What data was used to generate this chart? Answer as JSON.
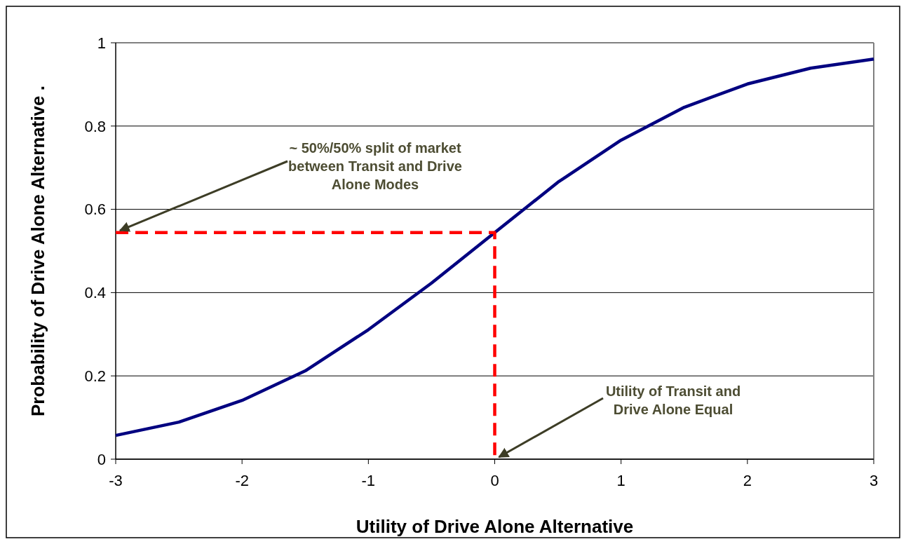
{
  "chart_data": {
    "type": "line",
    "xlabel": "Utility of Drive Alone Alternative",
    "ylabel": "Probability of Drive Alone Alternative  .",
    "xlim": [
      -3,
      3
    ],
    "xticks": [
      -3,
      -2,
      -1,
      0,
      1,
      2,
      3
    ],
    "ylim": [
      0,
      1
    ],
    "yticks": [
      0,
      0.2,
      0.4,
      0.6,
      0.8,
      1
    ],
    "grid": "y",
    "marker": "none",
    "series": [
      {
        "color": "#000080",
        "line_style": "solid",
        "x": [
          -3,
          -2.5,
          -2,
          -1.5,
          -1,
          -0.5,
          0,
          0.5,
          1,
          1.5,
          2,
          2.5,
          3
        ],
        "values": [
          0.057,
          0.089,
          0.141,
          0.212,
          0.311,
          0.423,
          0.544,
          0.665,
          0.766,
          0.845,
          0.901,
          0.939,
          0.961
        ]
      },
      {
        "color": "#ff0000",
        "line_style": "dashed",
        "x": [
          -3,
          0,
          0
        ],
        "values": [
          0.544,
          0.544,
          0
        ]
      }
    ],
    "annotations": [
      {
        "text": "~ 50%/50% split of market between Transit and Drive Alone Modes",
        "x": -3,
        "y": 0.544
      },
      {
        "text": "Utility of Transit and Drive Alone Equal",
        "x": 0,
        "y": 0
      }
    ]
  }
}
